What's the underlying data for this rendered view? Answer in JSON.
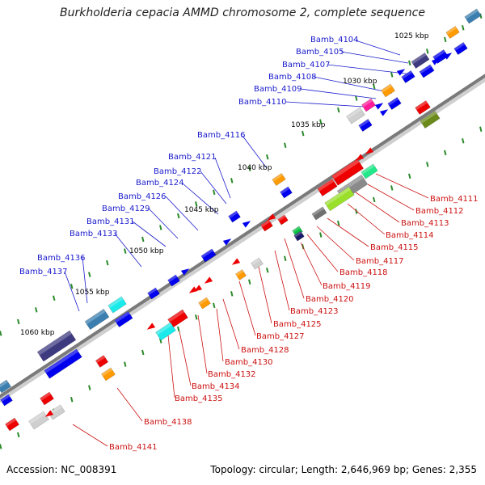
{
  "title": "Burkholderia cepacia AMMD chromosome 2, complete sequence",
  "footer": {
    "accession": "Accession: NC_008391",
    "topology": "Topology: circular; Length: 2,646,969 bp; Genes: 2,355"
  },
  "scale_labels": [
    "1025 kbp",
    "1030 kbp",
    "1035 kbp",
    "1040 kbp",
    "1045 kbp",
    "1050 kbp",
    "1055 kbp",
    "1060 kbp"
  ],
  "forward_labels": [
    "Bamb_4104",
    "Bamb_4105",
    "Bamb_4107",
    "Bamb_4108",
    "Bamb_4109",
    "Bamb_4110",
    "Bamb_4116",
    "Bamb_4121",
    "Bamb_4122",
    "Bamb_4124",
    "Bamb_4126",
    "Bamb_4129",
    "Bamb_4131",
    "Bamb_4133",
    "Bamb_4136",
    "Bamb_4137"
  ],
  "reverse_labels": [
    "Bamb_4111",
    "Bamb_4112",
    "Bamb_4113",
    "Bamb_4114",
    "Bamb_4115",
    "Bamb_4117",
    "Bamb_4118",
    "Bamb_4119",
    "Bamb_4120",
    "Bamb_4123",
    "Bamb_4125",
    "Bamb_4127",
    "Bamb_4128",
    "Bamb_4130",
    "Bamb_4132",
    "Bamb_4134",
    "Bamb_4135",
    "Bamb_4138",
    "Bamb_4141"
  ],
  "colors": {
    "forward_label": "#1a1acc",
    "reverse_label": "#cc1111",
    "forward_gene": "#0000ee",
    "reverse_gene": "#ee0000",
    "backbone": "#7a7a7a",
    "tick": "#2a8a2a"
  }
}
